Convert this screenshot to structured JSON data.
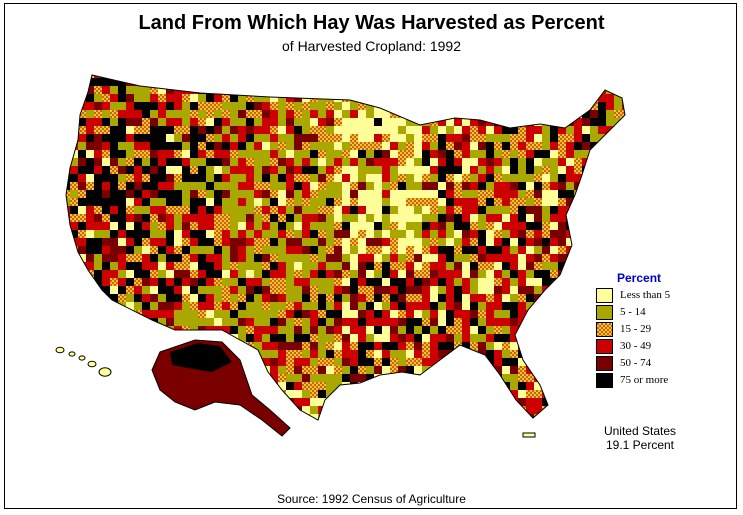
{
  "title": "Land From Which Hay Was Harvested as Percent",
  "subtitle": "of Harvested Cropland:  1992",
  "legend": {
    "title": "Percent",
    "classes": [
      {
        "label": "Less than 5",
        "color": "#ffff99"
      },
      {
        "label": "5  -  14",
        "color": "#a8a800"
      },
      {
        "label": "15  -  29",
        "color": "#e8a020",
        "pattern": "checker"
      },
      {
        "label": "30  -  49",
        "color": "#cc0000"
      },
      {
        "label": "50  -  74",
        "color": "#7a0000"
      },
      {
        "label": "75 or more",
        "color": "#000000"
      }
    ]
  },
  "us_total": {
    "line1": "United States",
    "line2": "19.1 Percent"
  },
  "source": "Source:  1992 Census of Agriculture"
}
